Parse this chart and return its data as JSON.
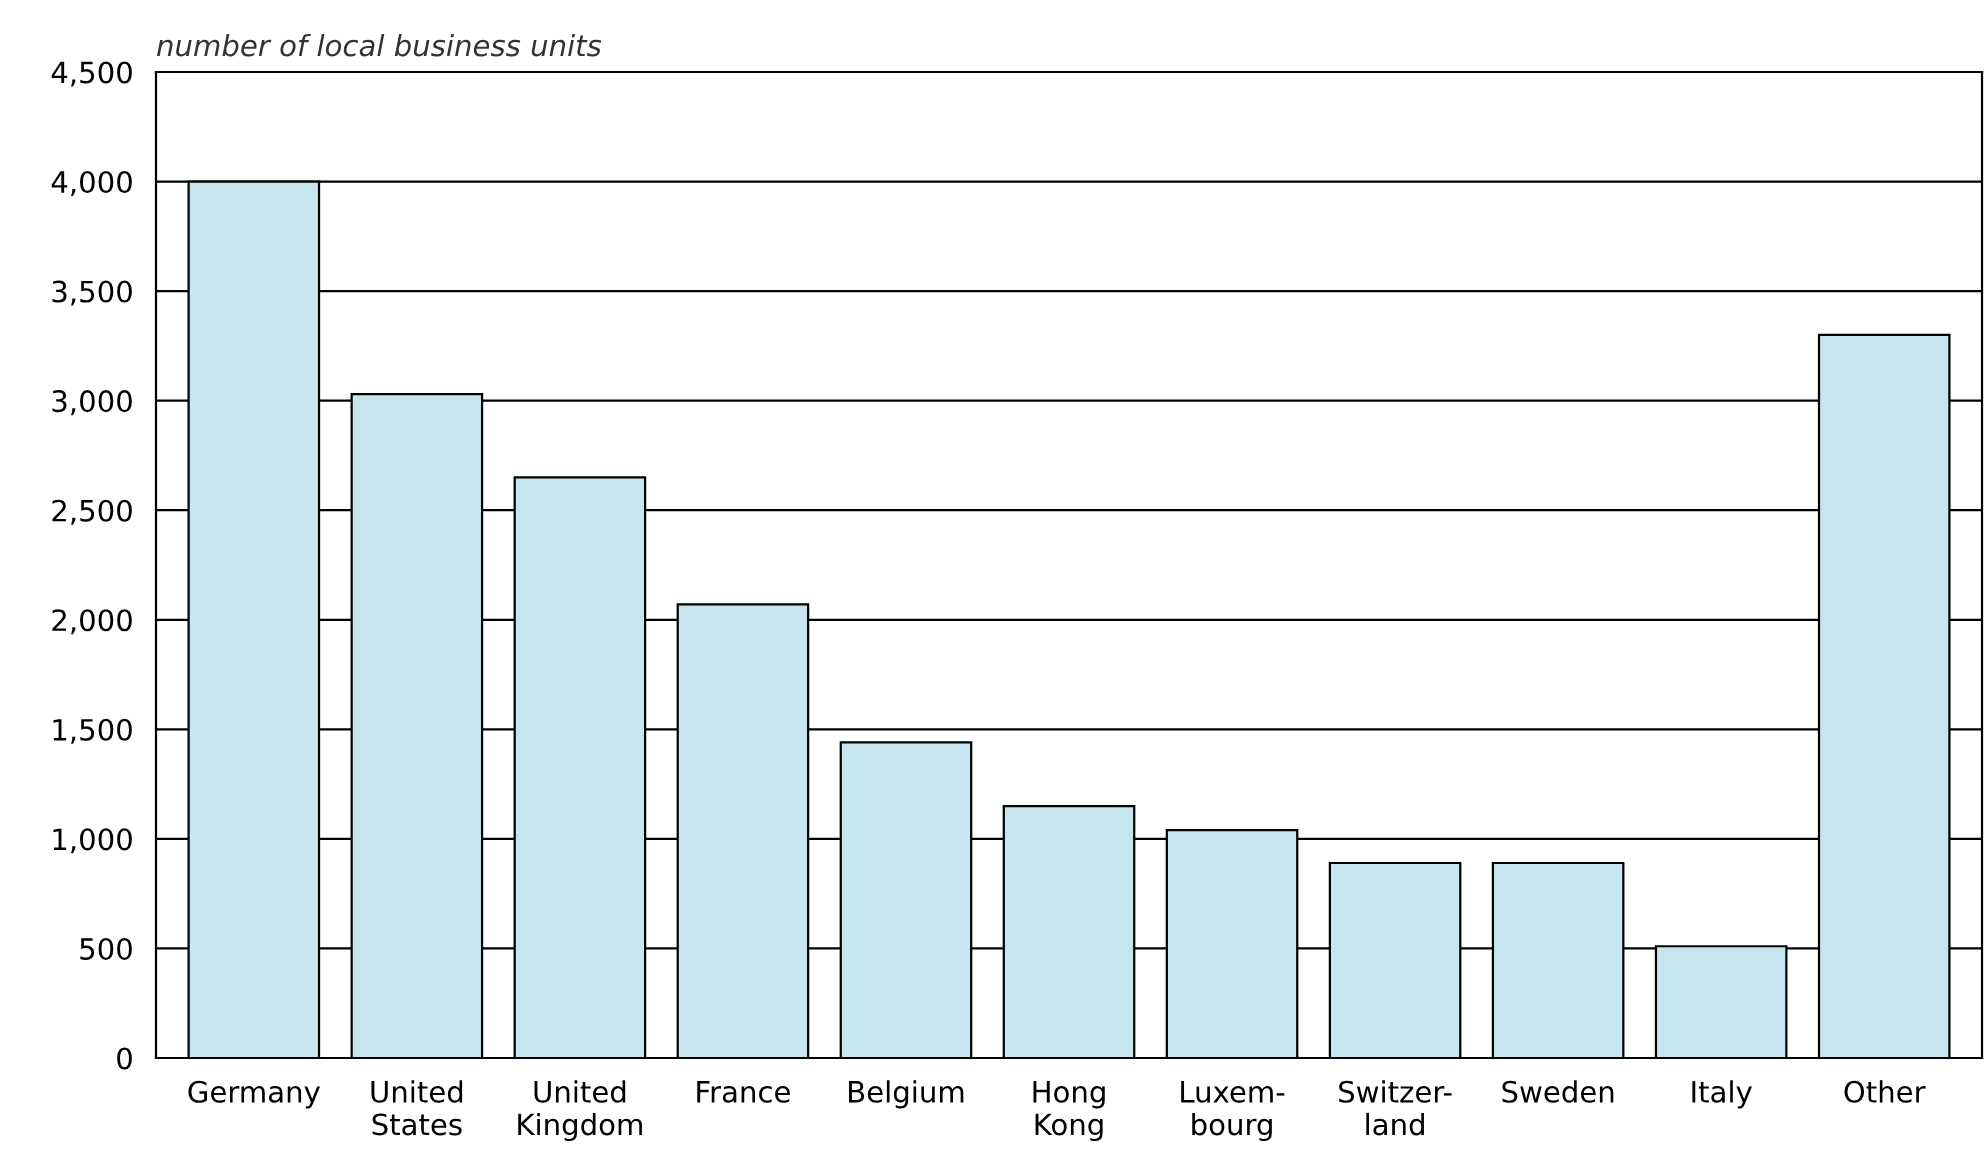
{
  "chart_data": {
    "type": "bar",
    "ylabel": "number of local business units",
    "categories": [
      "Germany",
      "United\nStates",
      "United\nKingdom",
      "France",
      "Belgium",
      "Hong\nKong",
      "Luxem-\nbourg",
      "Switzer-\nland",
      "Sweden",
      "Italy",
      "Other"
    ],
    "values": [
      4000,
      3030,
      2650,
      2070,
      1440,
      1150,
      1040,
      890,
      890,
      510,
      3300
    ],
    "color": "#c5e6ee",
    "ylim": [
      0,
      4500
    ],
    "yticks": [
      {
        "value": 0,
        "label": "0"
      },
      {
        "value": 500,
        "label": "500"
      },
      {
        "value": 1000,
        "label": "1,000"
      },
      {
        "value": 1500,
        "label": "1,500"
      },
      {
        "value": 2000,
        "label": "2,000"
      },
      {
        "value": 2500,
        "label": "2,500"
      },
      {
        "value": 3000,
        "label": "3,000"
      },
      {
        "value": 3500,
        "label": "3,500"
      },
      {
        "value": 4000,
        "label": "4,000"
      },
      {
        "value": 4500,
        "label": "4,500"
      }
    ],
    "grid": "y"
  }
}
